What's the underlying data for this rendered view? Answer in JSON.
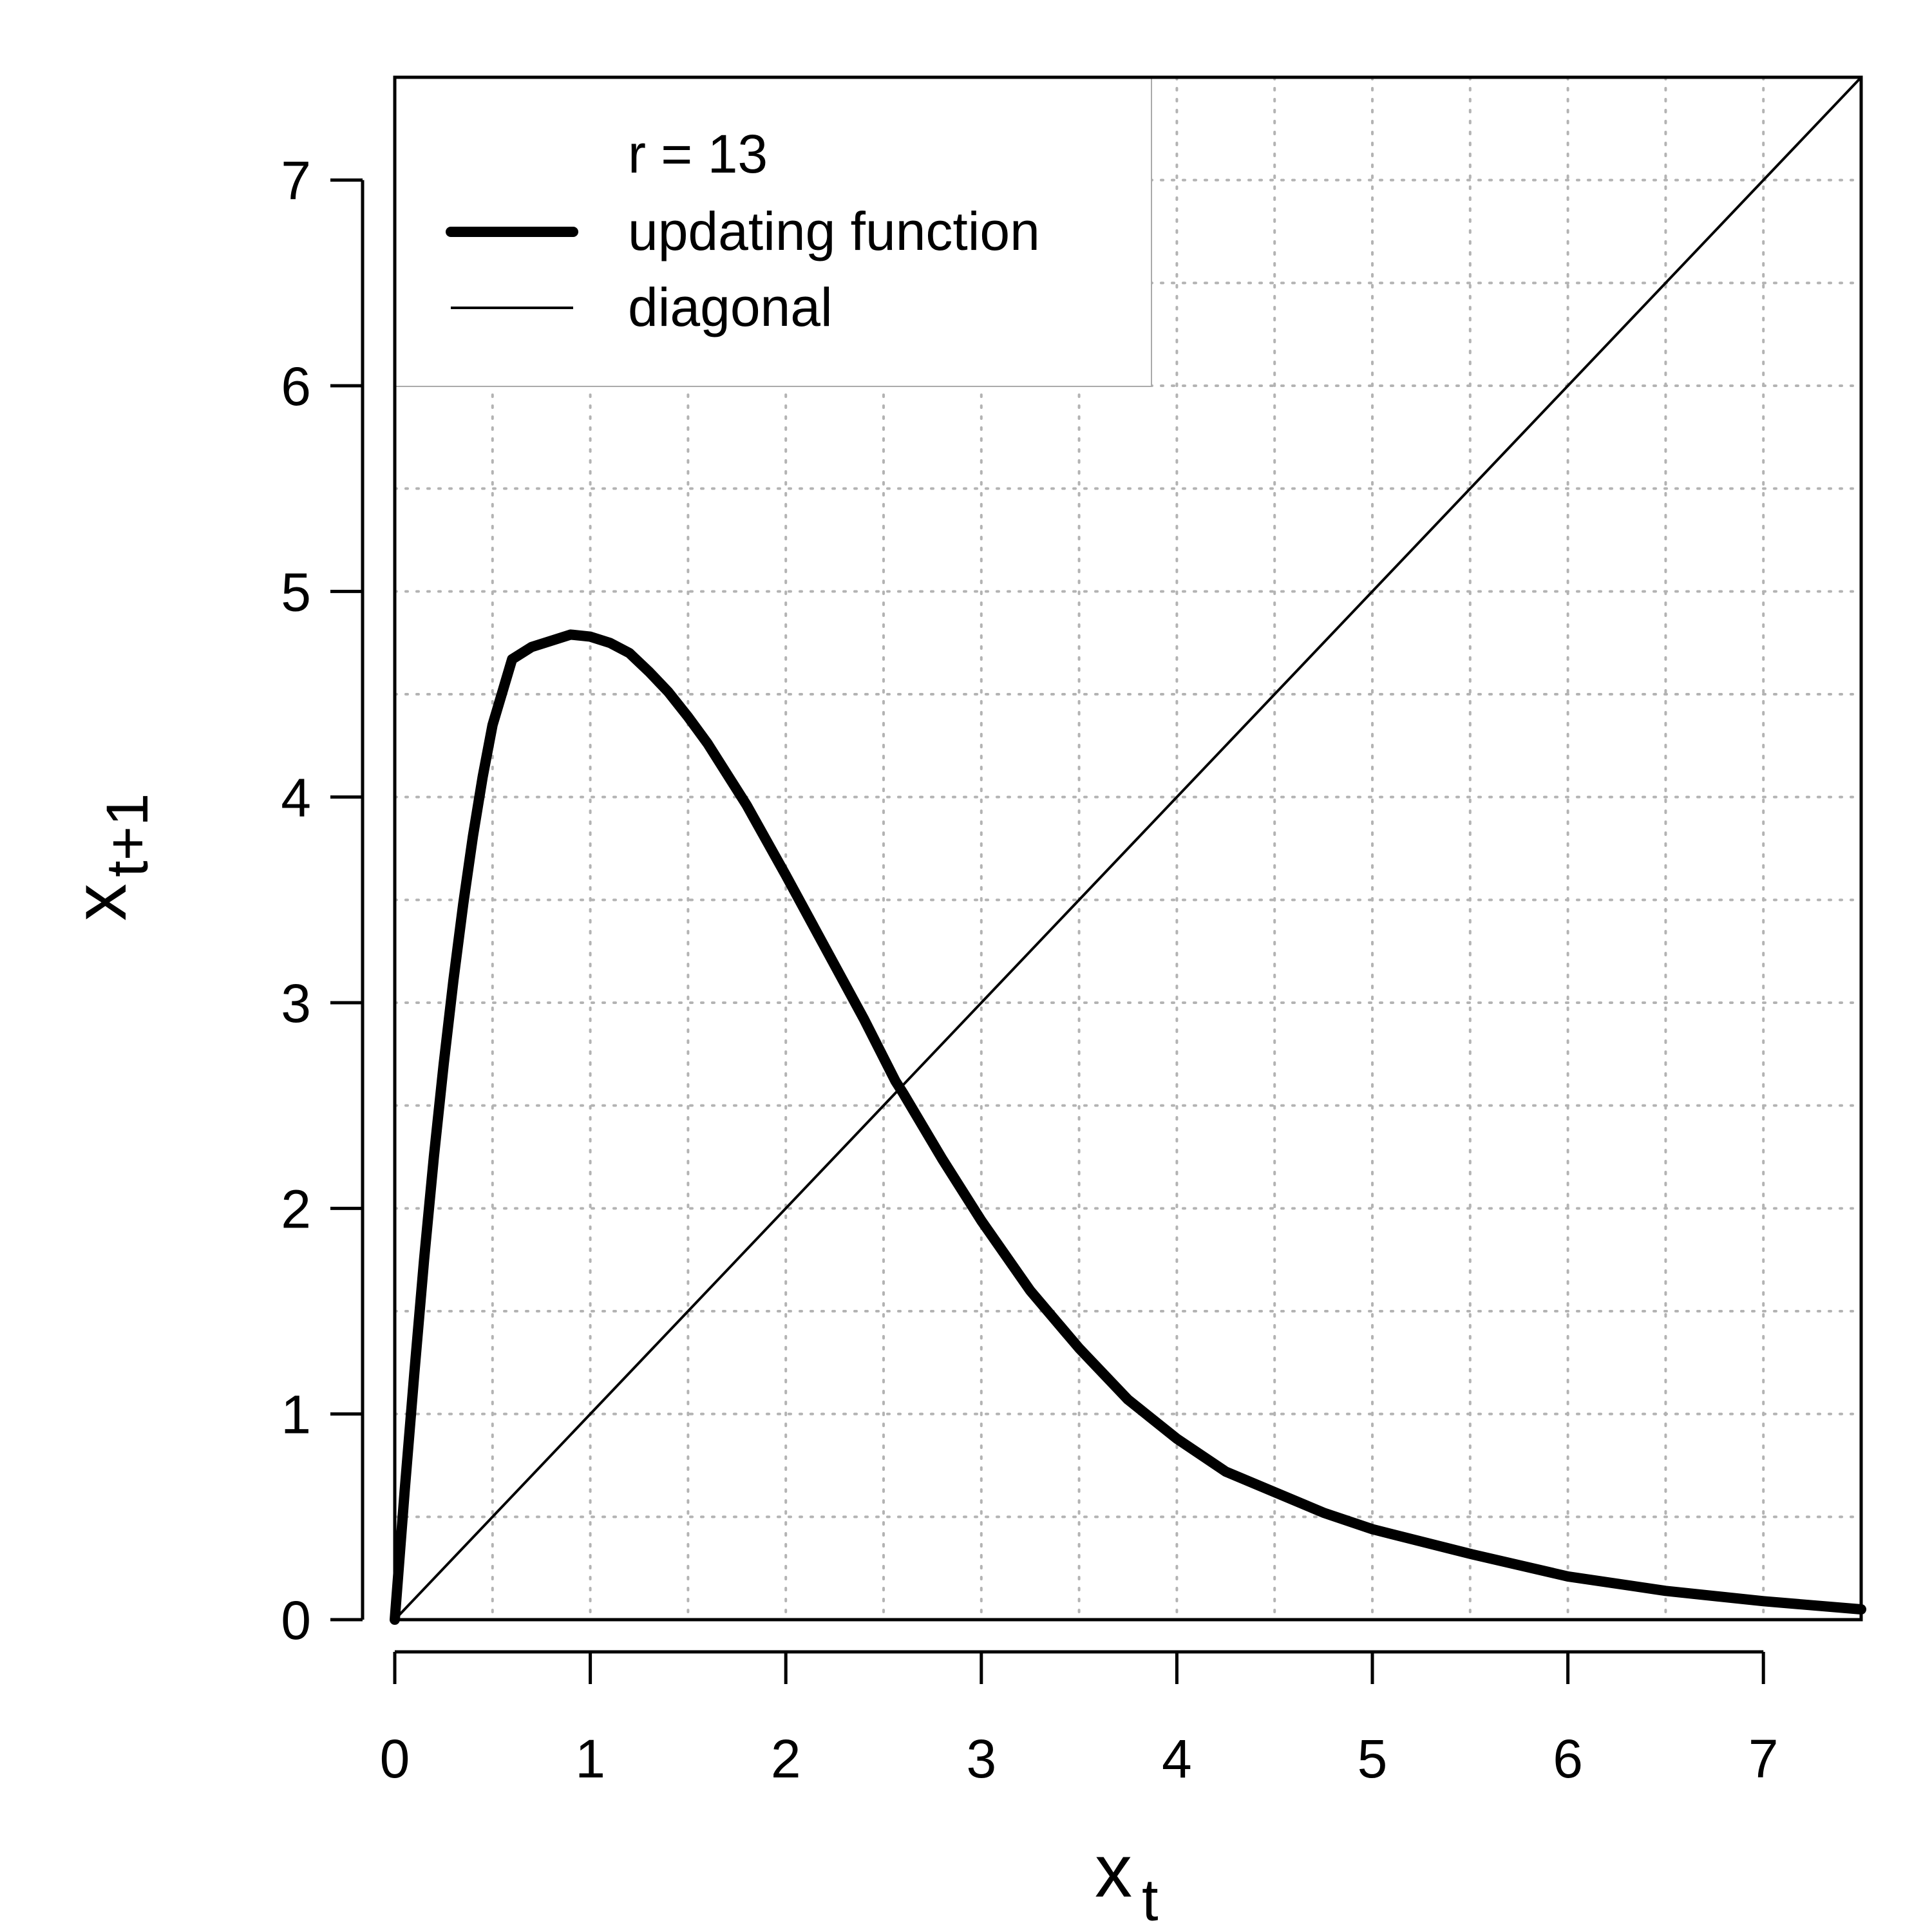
{
  "chart_data": {
    "type": "line",
    "title": "",
    "xlabel": {
      "base": "x",
      "sub": "t"
    },
    "ylabel": {
      "base": "x",
      "sub": "t+1"
    },
    "xlim": [
      0,
      7.5
    ],
    "ylim": [
      0,
      7.5
    ],
    "x_ticks": [
      0,
      1,
      2,
      3,
      4,
      5,
      6,
      7
    ],
    "y_ticks": [
      0,
      1,
      2,
      3,
      4,
      5,
      6,
      7
    ],
    "x_tick_labels": [
      "0",
      "1",
      "2",
      "3",
      "4",
      "5",
      "6",
      "7"
    ],
    "y_tick_labels": [
      "0",
      "1",
      "2",
      "3",
      "4",
      "5",
      "6",
      "7"
    ],
    "grid": true,
    "grid_step": 0.5,
    "legend": {
      "position": "top-left",
      "title": "r = 13",
      "entries": [
        "updating function",
        "diagonal"
      ]
    },
    "series": [
      {
        "name": "updating function",
        "style": "thick",
        "x": [
          0,
          0.05,
          0.1,
          0.15,
          0.2,
          0.25,
          0.3,
          0.35,
          0.4,
          0.45,
          0.5,
          0.6,
          0.7,
          0.8,
          0.9,
          1.0,
          1.1,
          1.2,
          1.3,
          1.4,
          1.5,
          1.6,
          1.8,
          2.0,
          2.2,
          2.4,
          2.56,
          2.6,
          2.8,
          3.0,
          3.25,
          3.5,
          3.75,
          4.0,
          4.25,
          4.5,
          4.75,
          5.0,
          5.5,
          6.0,
          6.5,
          7.0,
          7.5
        ],
        "y": [
          0,
          0.62,
          1.2,
          1.75,
          2.25,
          2.7,
          3.11,
          3.48,
          3.81,
          4.1,
          4.35,
          4.67,
          4.73,
          4.76,
          4.79,
          4.78,
          4.75,
          4.7,
          4.61,
          4.51,
          4.39,
          4.26,
          3.96,
          3.62,
          3.27,
          2.92,
          2.62,
          2.56,
          2.24,
          1.94,
          1.6,
          1.32,
          1.07,
          0.88,
          0.72,
          0.62,
          0.52,
          0.44,
          0.32,
          0.21,
          0.14,
          0.09,
          0.05
        ]
      },
      {
        "name": "diagonal",
        "style": "thin",
        "x": [
          0,
          7.5
        ],
        "y": [
          0,
          7.5
        ]
      }
    ]
  }
}
